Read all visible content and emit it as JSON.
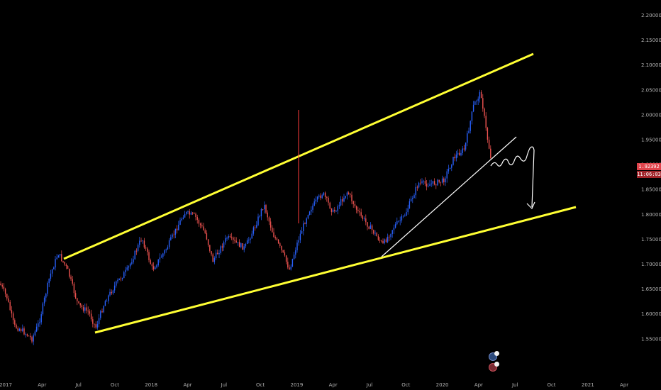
{
  "chart_data": {
    "type": "candlestick",
    "y_ticks": [
      "2.20000",
      "2.15000",
      "2.10000",
      "2.05000",
      "2.00000",
      "1.95000",
      "1.90000",
      "1.85000",
      "1.80000",
      "1.75000",
      "1.70000",
      "1.65000",
      "1.60000",
      "1.55000"
    ],
    "x_ticks": [
      "2017",
      "Apr",
      "Jul",
      "Oct",
      "2018",
      "Apr",
      "Jul",
      "Oct",
      "2019",
      "Apr",
      "Jul",
      "Oct",
      "2020",
      "Apr",
      "Jul",
      "Oct",
      "2021",
      "Apr"
    ],
    "last_price": "1.92392",
    "countdown": "11:06:03",
    "colors": {
      "up": "#2962ff",
      "down": "#ef5350",
      "background": "#000000",
      "channel": "#ffff33",
      "annotation": "#ffffff",
      "spike": "#ff3b3b",
      "price_badge": "#e0434b"
    }
  },
  "icons": {
    "event_markers": [
      "event-icon",
      "event-icon"
    ]
  }
}
